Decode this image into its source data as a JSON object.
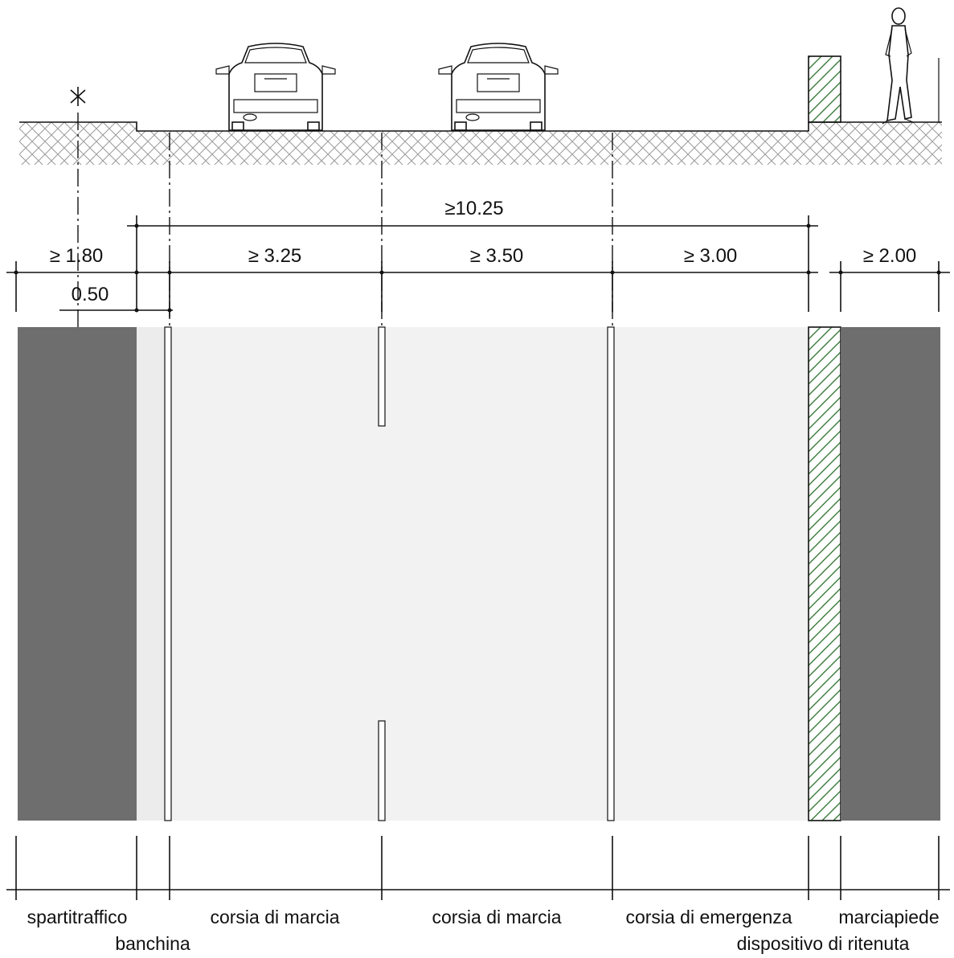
{
  "dimensions": {
    "total_carriageway": "≥10.25",
    "spartitraffico": "≥ 1.80",
    "banchina": "0.50",
    "corsia_1": "≥ 3.25",
    "corsia_2": "≥ 3.50",
    "emergenza": "≥ 3.00",
    "marciapiede": "≥ 2.00"
  },
  "labels": {
    "spartitraffico": "spartitraffico",
    "banchina": "banchina",
    "corsia_1": "corsia di marcia",
    "corsia_2": "corsia di marcia",
    "emergenza": "corsia di emergenza",
    "marciapiede": "marciapiede",
    "dispositivo": "dispositivo di ritenuta"
  },
  "colors": {
    "pavement": "#f2f2f2",
    "banchina": "#ececec",
    "dark_strip": "#6e6e6e",
    "lines": "#111111",
    "barrier_hatch": "#3a7a3a",
    "ground_hatch": "#9a9a9a"
  },
  "icons": {
    "car_1": "car-rear-icon",
    "car_2": "car-rear-icon",
    "person": "standing-person-icon",
    "tree": "tree-symbol-icon"
  }
}
